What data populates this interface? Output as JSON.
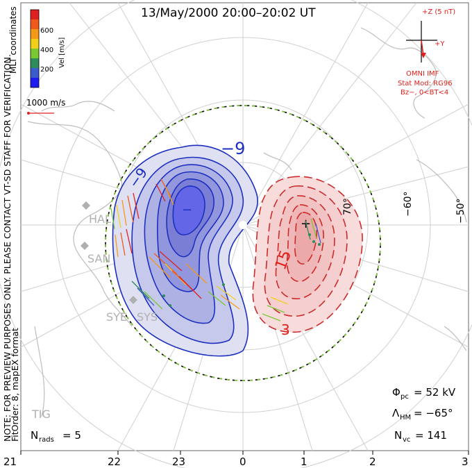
{
  "title": "13/May/2000 20:00–20:02 UT",
  "colorbar": {
    "ticks": [
      "600",
      "400",
      "200"
    ],
    "label": "Vel [m/s]",
    "colors": [
      "#e02020",
      "#f05a1a",
      "#f59a18",
      "#f2d01a",
      "#7ac832",
      "#2e8c5a",
      "#3a5ccc",
      "#1c1cf0"
    ]
  },
  "coord_label": "MLT coordinates",
  "ref_vector": "1000 m/s",
  "watermark": "NOTE: FOR PREVIEW PURPOSES ONLY. PLEASE CONTACT VT-SD STAFF FOR VERIFICATION.",
  "fit_order": "FitOrder: 8, mapEX format",
  "imf": {
    "z_label": "+Z (5 nT)",
    "y_label": "+Y",
    "source": "OMNI IMF",
    "stat_mod": "Stat Mod: RG96",
    "condition": "Bz−, 0<BT<4"
  },
  "contours": {
    "neg_label": "−9",
    "neg_label2": "−9",
    "neg_min_label": "−",
    "pos_label": "15",
    "pos_label2": "3"
  },
  "lat_labels": [
    "70°",
    "−60°",
    "−50°"
  ],
  "stations": [
    "HAL",
    "SAN",
    "SYE",
    "SYS",
    "TIG"
  ],
  "mlt_ticks": [
    "21",
    "22",
    "23",
    "0",
    "1",
    "2",
    "3"
  ],
  "stats": {
    "phi_pc": "Φ",
    "phi_sub": "pc",
    "phi_val": "= 52 kV",
    "lam": "Λ",
    "lam_sub": "HM",
    "lam_val": "= −65°",
    "nvc": "N",
    "nvc_sub": "vc",
    "nvc_val": "= 141",
    "nrads": "N",
    "nrads_sub": "rads",
    "nrads_val": "= 5"
  }
}
